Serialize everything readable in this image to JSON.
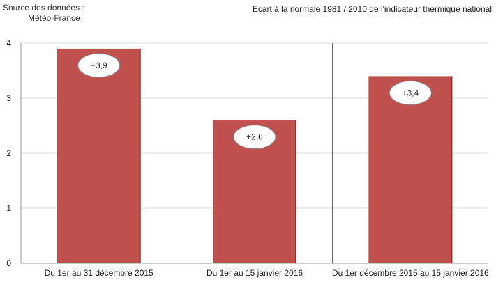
{
  "source": {
    "line1": "Source des données :",
    "line2": "Météo-France"
  },
  "chart_data": {
    "type": "bar",
    "title": "Ecart à la normale 1981 / 2010 de l'indicateur thermique national",
    "categories": [
      "Du 1er au 31 décembre 2015",
      "Du 1er au 15 janvier 2016",
      "Du 1er décembre 2015 au 15 janvier 2016"
    ],
    "values": [
      3.9,
      2.6,
      3.4
    ],
    "data_labels": [
      "+3,9",
      "+2,6",
      "+3,4"
    ],
    "ylim": [
      0,
      4
    ],
    "yticks": [
      0,
      1,
      2,
      3,
      4
    ],
    "xlabel": "",
    "ylabel": "",
    "grid": true,
    "bar_color": "#c0504d"
  }
}
